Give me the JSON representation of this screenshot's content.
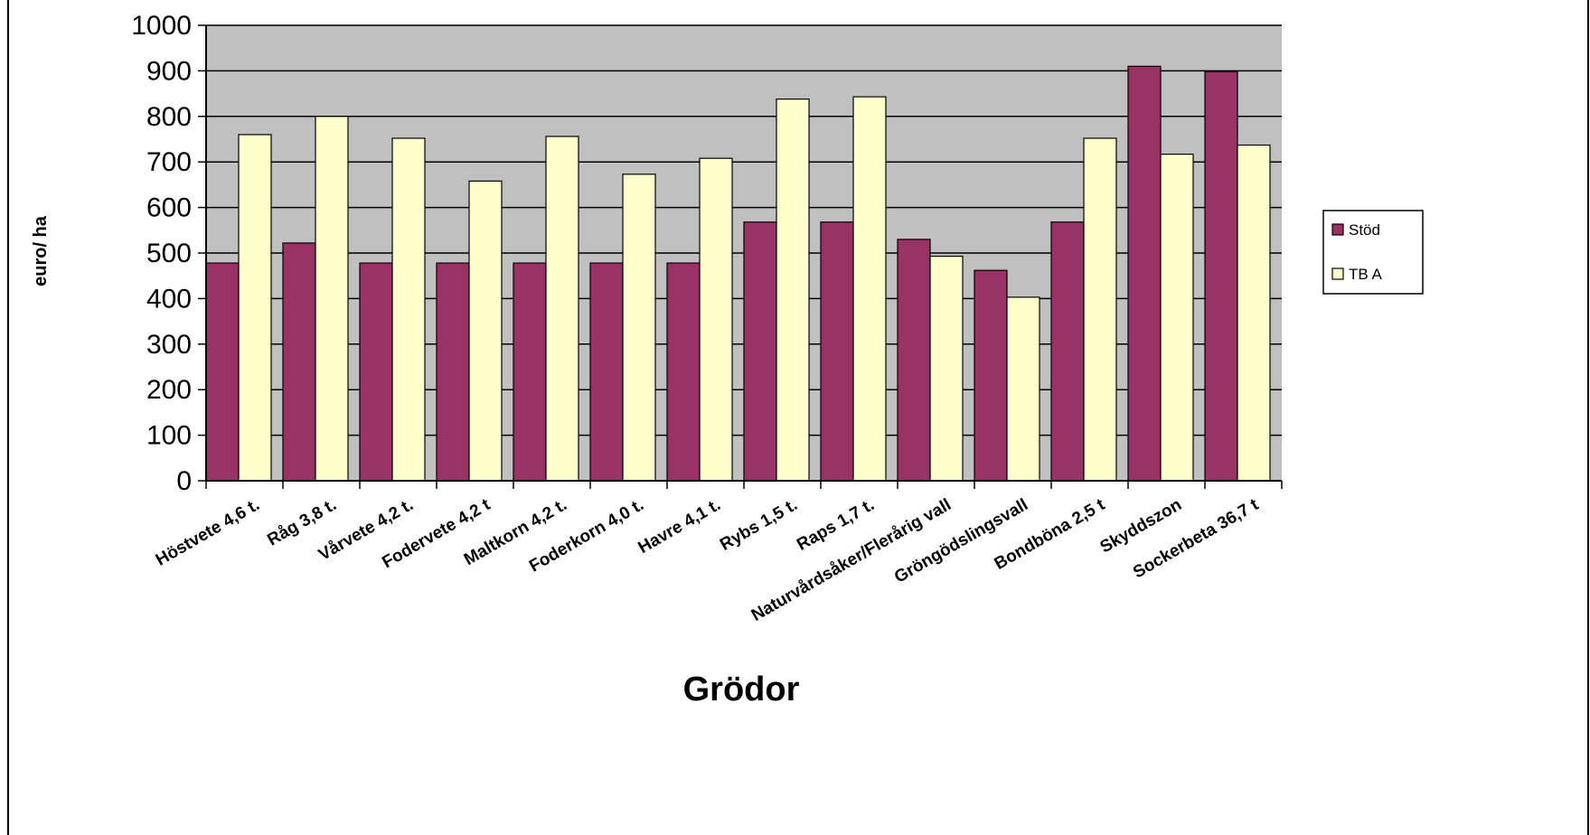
{
  "chart_data": {
    "type": "bar",
    "xlabel": "Grödor",
    "ylabel": "euro/ ha",
    "ylim": [
      0,
      1000
    ],
    "yticks": [
      0,
      100,
      200,
      300,
      400,
      500,
      600,
      700,
      800,
      900,
      1000
    ],
    "grid": true,
    "legend_position": "right",
    "categories": [
      "Höstvete 4,6 t.",
      "Råg 3,8 t.",
      "Vårvete 4,2 t.",
      "Fodervete 4,2 t",
      "Maltkorn 4,2 t.",
      "Foderkorn 4,0 t.",
      "Havre 4,1 t.",
      "Rybs 1,5 t.",
      "Raps 1,7 t.",
      "Naturvårdsåker/Flerårig vall",
      "Gröngödslingsvall",
      "Bondböna 2,5 t",
      "Skyddszon",
      "Sockerbeta 36,7 t"
    ],
    "series": [
      {
        "name": "Stöd",
        "color": "#993366",
        "values": [
          478,
          522,
          478,
          478,
          478,
          478,
          478,
          568,
          568,
          530,
          462,
          568,
          910,
          898
        ]
      },
      {
        "name": "TB A",
        "color": "#FFFFCC",
        "values": [
          760,
          800,
          752,
          658,
          756,
          673,
          708,
          838,
          843,
          493,
          403,
          752,
          717,
          737
        ]
      }
    ]
  }
}
